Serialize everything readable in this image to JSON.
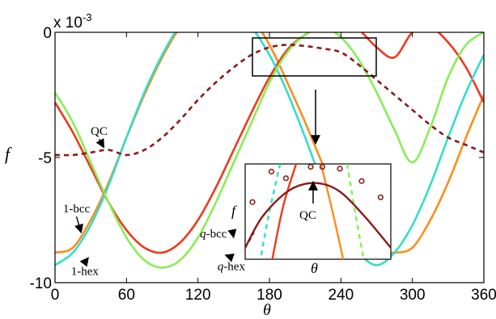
{
  "chart_data": {
    "type": "line",
    "xlabel": "θ",
    "ylabel": "f",
    "xlim": [
      0,
      360
    ],
    "ylim": [
      -10,
      0
    ],
    "multiplier": "x 10",
    "multiplier_exp": "-3",
    "xticks": [
      0,
      60,
      120,
      180,
      240,
      300,
      360
    ],
    "yticks": [
      {
        "value": 0,
        "label": "0"
      },
      {
        "value": -5,
        "label": "-5"
      },
      {
        "value": -10,
        "label": "-10"
      }
    ],
    "grid": false,
    "series": [
      {
        "name": "1-bcc",
        "color": "#FF8C1A",
        "x": [
          0,
          15,
          30,
          45,
          60,
          75,
          90,
          105,
          120,
          135,
          150,
          165,
          180,
          195,
          210,
          225,
          240,
          255,
          270,
          285,
          300,
          315,
          330,
          345,
          360
        ],
        "y": [
          -8.8,
          -8.6,
          -7.5,
          -6.0,
          -4.2,
          -2.5,
          -1.0,
          0.2,
          1.0,
          1.4,
          1.2,
          0.6,
          -0.5,
          -2.0,
          -3.6,
          -5.3,
          -6.8,
          -8.0,
          -8.7,
          -8.8,
          -8.6,
          -7.5,
          -6.0,
          -4.2,
          -2.5
        ]
      },
      {
        "name": "q-bcc",
        "color": "#EE3A1C",
        "x": [
          0,
          15,
          30,
          45,
          60,
          75,
          90,
          105,
          120,
          135,
          150,
          165,
          180,
          195,
          210,
          225,
          240,
          255,
          270,
          285,
          300,
          315,
          330,
          345,
          360
        ],
        "y": [
          -2.8,
          -4.0,
          -5.4,
          -6.8,
          -7.9,
          -8.6,
          -8.8,
          -8.4,
          -7.5,
          -6.2,
          -4.7,
          -3.2,
          -1.8,
          -0.7,
          -0.1,
          0.3,
          0.4,
          0.1,
          -0.6,
          -1.0,
          0.0,
          0.2,
          -0.4,
          -1.4,
          -2.8
        ]
      },
      {
        "name": "1-hex",
        "color": "#33DDCC",
        "x": [
          0,
          15,
          30,
          45,
          60,
          75,
          90,
          105,
          120,
          135,
          150,
          165,
          180,
          195,
          210,
          225,
          240,
          255,
          270,
          285,
          300,
          315,
          330,
          345,
          360
        ],
        "y": [
          -9.3,
          -8.8,
          -7.7,
          -6.1,
          -4.2,
          -2.4,
          -0.9,
          0.3,
          1.0,
          1.2,
          0.9,
          0.2,
          -0.9,
          -2.4,
          -4.2,
          -6.1,
          -7.7,
          -8.8,
          -9.3,
          -8.8,
          -7.7,
          -6.1,
          -4.2,
          -2.4,
          -0.9
        ]
      },
      {
        "name": "q-hex",
        "color": "#88EE55",
        "x": [
          0,
          15,
          30,
          45,
          60,
          75,
          90,
          105,
          120,
          135,
          150,
          165,
          180,
          195,
          210,
          225,
          240,
          255,
          270,
          285,
          300,
          315,
          330,
          345,
          360
        ],
        "y": [
          -2.4,
          -3.6,
          -5.2,
          -6.8,
          -8.2,
          -9.1,
          -9.4,
          -9.1,
          -8.2,
          -6.8,
          -5.2,
          -3.6,
          -2.0,
          -0.8,
          -0.1,
          0.2,
          -0.2,
          -1.1,
          -2.4,
          -3.9,
          -5.2,
          -3.8,
          -1.8,
          -0.5,
          0.0
        ]
      },
      {
        "name": "QC",
        "color": "#8B1A1A",
        "x": [
          0,
          15,
          30,
          45,
          60,
          75,
          90,
          105,
          120,
          135,
          150,
          165,
          180,
          195,
          210,
          225,
          240,
          255,
          270,
          285,
          300,
          315,
          330,
          345,
          360
        ],
        "y": [
          -4.9,
          -4.9,
          -4.8,
          -4.7,
          -4.9,
          -4.7,
          -4.2,
          -3.5,
          -2.7,
          -2.0,
          -1.4,
          -0.9,
          -0.6,
          -0.5,
          -0.55,
          -0.65,
          -0.8,
          -1.3,
          -1.9,
          -2.5,
          -3.1,
          -3.7,
          -4.2,
          -4.5,
          -4.8
        ]
      }
    ],
    "annotations": [
      {
        "text": "QC",
        "at": [
          37,
          -4.1
        ],
        "target": [
          41,
          -4.6
        ]
      },
      {
        "text": "1-bcc",
        "at": [
          18,
          -7.2
        ],
        "target": [
          22,
          -8.0
        ]
      },
      {
        "text": "1-hex",
        "at": [
          25,
          -9.7
        ],
        "target": [
          28,
          -9.0
        ]
      },
      {
        "text": "q-bcc",
        "at": [
          133,
          -8.2
        ],
        "target": [
          150,
          -8.2
        ]
      },
      {
        "text": "q-hex",
        "at": [
          148,
          -9.5
        ],
        "target": [
          143,
          -8.9
        ]
      }
    ],
    "inset": {
      "xlabel": "θ",
      "ylabel": "f",
      "annotation": "QC",
      "points": [
        [
          0.05,
          0.4
        ],
        [
          0.18,
          0.08
        ],
        [
          0.28,
          0.15
        ],
        [
          0.45,
          0.03
        ],
        [
          0.53,
          0.03
        ],
        [
          0.65,
          0.05
        ],
        [
          0.8,
          0.18
        ],
        [
          0.93,
          0.35
        ]
      ]
    }
  }
}
